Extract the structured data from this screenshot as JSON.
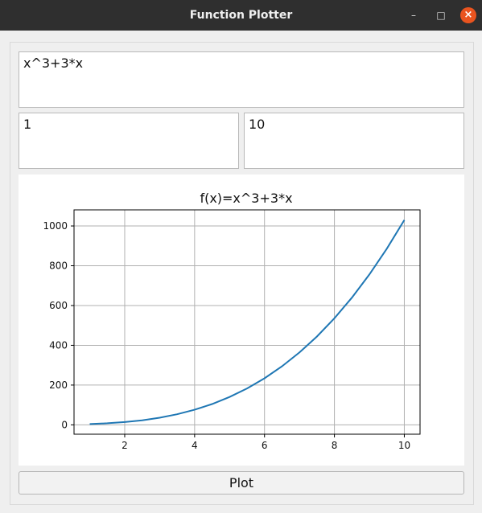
{
  "window": {
    "title": "Function Plotter"
  },
  "inputs": {
    "expression": "x^3+3*x",
    "min": "1",
    "max": "10"
  },
  "plot_button": {
    "label": "Plot"
  },
  "chart_data": {
    "type": "line",
    "title": "f(x)=x^3+3*x",
    "xlabel": "",
    "ylabel": "",
    "xlim": [
      0.55,
      10.45
    ],
    "ylim": [
      -47,
      1081
    ],
    "xticks": [
      2,
      4,
      6,
      8,
      10
    ],
    "yticks": [
      0,
      200,
      400,
      600,
      800,
      1000
    ],
    "grid": true,
    "color": "#1f77b4",
    "series": [
      {
        "x": [
          1,
          1.5,
          2,
          2.5,
          3,
          3.5,
          4,
          4.5,
          5,
          5.5,
          6,
          6.5,
          7,
          7.5,
          8,
          8.5,
          9,
          9.5,
          10
        ],
        "y": [
          4,
          7.88,
          14,
          23.13,
          36,
          53.38,
          76,
          104.63,
          140,
          182.88,
          234,
          294.13,
          364,
          444.38,
          536,
          639.63,
          756,
          885.88,
          1030
        ]
      }
    ]
  }
}
